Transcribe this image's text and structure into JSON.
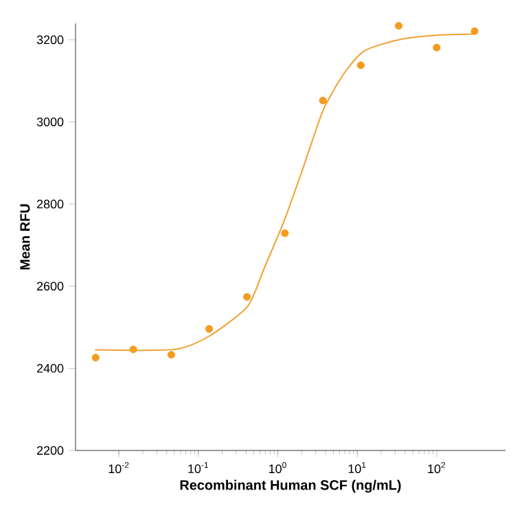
{
  "chart_data": {
    "type": "scatter",
    "xlabel": "Recombinant Human SCF (ng/mL)",
    "ylabel": "Mean RFU",
    "log": "x",
    "xlim": [
      0.00285,
      733
    ],
    "ylim": [
      2200,
      3240
    ],
    "xticks": [
      {
        "value": 0.01,
        "label": "10$^{-2}$"
      },
      {
        "value": 0.1,
        "label": "10$^{-1}$"
      },
      {
        "value": 1,
        "label": "10$^{0}$"
      },
      {
        "value": 10,
        "label": "10$^{1}$"
      },
      {
        "value": 100,
        "label": "10$^{2}$"
      }
    ],
    "yticks": [
      2200,
      2400,
      2600,
      2800,
      3000,
      3200
    ],
    "grid": false,
    "series": [
      {
        "marker": "circle",
        "color": "#f39c1f",
        "x": [
          0.0051,
          0.0152,
          0.0457,
          0.137,
          0.41,
          1.23,
          3.7,
          11.1,
          33.3,
          100,
          300
        ],
        "values": [
          2426,
          2446,
          2433,
          2496,
          2574,
          2729,
          3052,
          3138,
          3234,
          3181,
          3221
        ]
      },
      {
        "type": "line",
        "marker": "none",
        "line_style": "solid",
        "color": "#f0a030",
        "x": [
          0.005,
          0.05,
          0.136,
          0.417,
          0.7,
          1.22,
          2.05,
          3.72,
          6.77,
          12.3,
          33.3,
          100,
          297
        ],
        "values": [
          2445,
          2446,
          2478,
          2551,
          2651,
          2762,
          2884,
          3028,
          3117,
          3173,
          3200,
          3211,
          3214
        ]
      }
    ]
  }
}
